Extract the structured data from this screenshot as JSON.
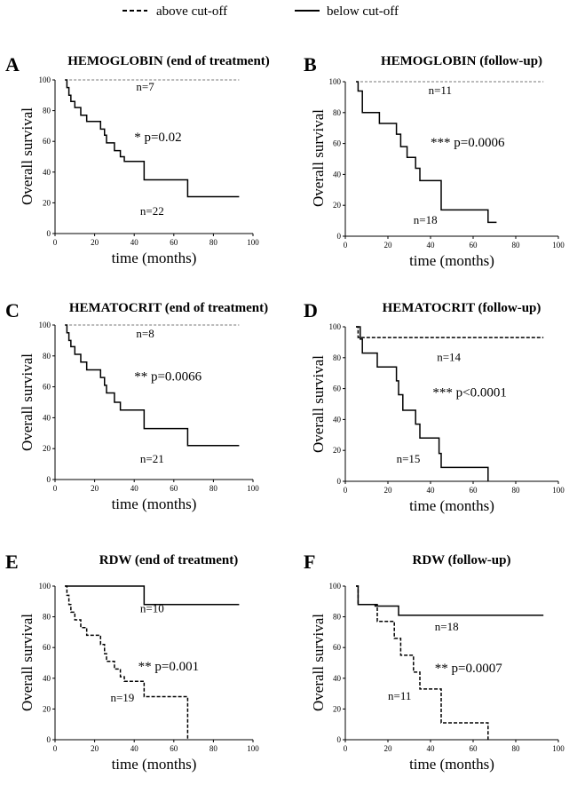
{
  "legend": {
    "placement": "top-center",
    "items": [
      {
        "label": "above cut-off",
        "style": "dashed"
      },
      {
        "label": "below cut-off",
        "style": "solid"
      }
    ]
  },
  "chart_data": [
    {
      "panel": "A",
      "type": "line",
      "title": "HEMOGLOBIN (end of treatment)",
      "xlabel": "time (months)",
      "ylabel": "Overall survival",
      "xlim": [
        0,
        100
      ],
      "ylim": [
        0,
        100
      ],
      "xticks": [
        0,
        20,
        40,
        60,
        80,
        100
      ],
      "yticks": [
        0,
        20,
        40,
        60,
        80,
        100
      ],
      "significance": "* p=0.02",
      "series": [
        {
          "name": "above cut-off",
          "style": "thin-dashed",
          "n_label": "n=7",
          "x": [
            5,
            93
          ],
          "y": [
            100,
            100
          ]
        },
        {
          "name": "below cut-off",
          "style": "solid",
          "n_label": "n=22",
          "x": [
            5,
            6,
            7,
            8,
            10,
            13,
            16,
            23,
            25,
            26,
            30,
            33,
            35,
            41,
            45,
            67,
            93
          ],
          "y": [
            100,
            95,
            90,
            86,
            82,
            77,
            73,
            68,
            64,
            59,
            54,
            50,
            47,
            47,
            35,
            24,
            24
          ]
        }
      ]
    },
    {
      "panel": "B",
      "type": "line",
      "title": "HEMOGLOBIN (follow-up)",
      "xlabel": "time (months)",
      "ylabel": "Overall survival",
      "xlim": [
        0,
        100
      ],
      "ylim": [
        0,
        100
      ],
      "xticks": [
        0,
        20,
        40,
        60,
        80,
        100
      ],
      "yticks": [
        0,
        20,
        40,
        60,
        80,
        100
      ],
      "significance": "*** p=0.0006",
      "series": [
        {
          "name": "above cut-off",
          "style": "thin-dashed",
          "n_label": "n=11",
          "x": [
            5,
            93
          ],
          "y": [
            100,
            100
          ]
        },
        {
          "name": "below cut-off",
          "style": "solid",
          "n_label": "n=18",
          "x": [
            5,
            6,
            8,
            16,
            24,
            26,
            29,
            33,
            35,
            41,
            45,
            67,
            71
          ],
          "y": [
            100,
            94,
            80,
            73,
            66,
            58,
            51,
            44,
            36,
            36,
            17,
            9,
            9
          ]
        }
      ]
    },
    {
      "panel": "C",
      "type": "line",
      "title": "HEMATOCRIT (end of treatment)",
      "xlabel": "time (months)",
      "ylabel": "Overall survival",
      "xlim": [
        0,
        100
      ],
      "ylim": [
        0,
        100
      ],
      "xticks": [
        0,
        20,
        40,
        60,
        80,
        100
      ],
      "yticks": [
        0,
        20,
        40,
        60,
        80,
        100
      ],
      "significance": "** p=0.0066",
      "series": [
        {
          "name": "above cut-off",
          "style": "thin-dashed",
          "n_label": "n=8",
          "x": [
            5,
            93
          ],
          "y": [
            100,
            100
          ]
        },
        {
          "name": "below cut-off",
          "style": "solid",
          "n_label": "n=21",
          "x": [
            5,
            6,
            7,
            8,
            10,
            13,
            16,
            23,
            25,
            26,
            30,
            33,
            35,
            41,
            45,
            67,
            93
          ],
          "y": [
            100,
            95,
            90,
            86,
            81,
            76,
            71,
            66,
            61,
            56,
            50,
            45,
            45,
            45,
            33,
            22,
            22
          ]
        }
      ]
    },
    {
      "panel": "D",
      "type": "line",
      "title": "HEMATOCRIT (follow-up)",
      "xlabel": "time (months)",
      "ylabel": "Overall survival",
      "xlim": [
        0,
        100
      ],
      "ylim": [
        0,
        100
      ],
      "xticks": [
        0,
        20,
        40,
        60,
        80,
        100
      ],
      "yticks": [
        0,
        20,
        40,
        60,
        80,
        100
      ],
      "significance": "*** p<0.0001",
      "series": [
        {
          "name": "above cut-off",
          "style": "dashed",
          "n_label": "n=14",
          "x": [
            5,
            6,
            93
          ],
          "y": [
            100,
            93,
            93
          ]
        },
        {
          "name": "below cut-off",
          "style": "solid",
          "n_label": "n=15",
          "x": [
            5,
            7,
            8,
            15,
            24,
            25,
            27,
            33,
            35,
            40,
            44,
            45,
            67
          ],
          "y": [
            100,
            92,
            83,
            74,
            65,
            56,
            46,
            37,
            28,
            28,
            18,
            9,
            0
          ]
        }
      ]
    },
    {
      "panel": "E",
      "type": "line",
      "title": "RDW (end of treatment)",
      "xlabel": "time (months)",
      "ylabel": "Overall survival",
      "xlim": [
        0,
        100
      ],
      "ylim": [
        0,
        100
      ],
      "xticks": [
        0,
        20,
        40,
        60,
        80,
        100
      ],
      "yticks": [
        0,
        20,
        40,
        60,
        80,
        100
      ],
      "significance": "** p=0.001",
      "series": [
        {
          "name": "above cut-off",
          "style": "dashed",
          "n_label": "n=19",
          "x": [
            5,
            6,
            7,
            8,
            10,
            13,
            16,
            23,
            25,
            26,
            30,
            33,
            35,
            41,
            45,
            67
          ],
          "y": [
            100,
            94,
            88,
            83,
            78,
            73,
            68,
            62,
            56,
            51,
            46,
            41,
            38,
            38,
            28,
            0
          ]
        },
        {
          "name": "below cut-off",
          "style": "solid",
          "n_label": "n=10",
          "x": [
            5,
            45,
            93
          ],
          "y": [
            100,
            88,
            88
          ]
        }
      ]
    },
    {
      "panel": "F",
      "type": "line",
      "title": "RDW (follow-up)",
      "xlabel": "time (months)",
      "ylabel": "Overall survival",
      "xlim": [
        0,
        100
      ],
      "ylim": [
        0,
        100
      ],
      "xticks": [
        0,
        20,
        40,
        60,
        80,
        100
      ],
      "yticks": [
        0,
        20,
        40,
        60,
        80,
        100
      ],
      "significance": "** p=0.0007",
      "series": [
        {
          "name": "above cut-off",
          "style": "dashed",
          "n_label": "n=11",
          "x": [
            5,
            6,
            15,
            23,
            26,
            32,
            35,
            41,
            45,
            67
          ],
          "y": [
            100,
            88,
            77,
            66,
            55,
            44,
            33,
            33,
            11,
            0
          ]
        },
        {
          "name": "below cut-off",
          "style": "solid",
          "n_label": "n=18",
          "x": [
            5,
            6,
            14,
            25,
            93
          ],
          "y": [
            100,
            88,
            87,
            81,
            81
          ]
        }
      ]
    }
  ]
}
